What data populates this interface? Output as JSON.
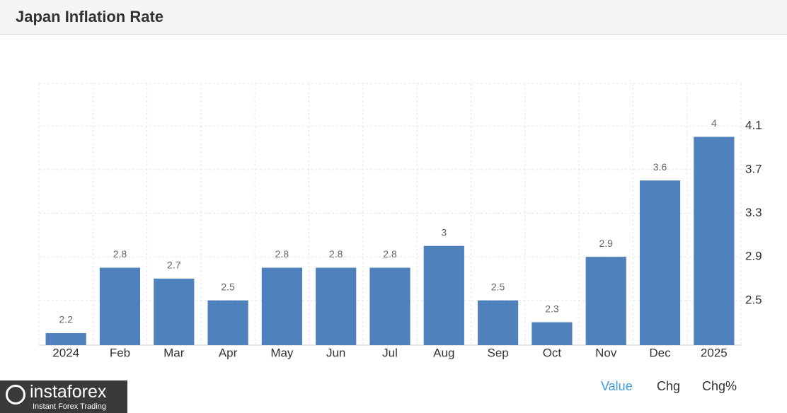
{
  "chart_data": {
    "type": "bar",
    "title": "Japan Inflation Rate",
    "categories": [
      "2024",
      "Feb",
      "Mar",
      "Apr",
      "May",
      "Jun",
      "Jul",
      "Aug",
      "Sep",
      "Oct",
      "Nov",
      "Dec",
      "2025"
    ],
    "values": [
      2.2,
      2.8,
      2.7,
      2.5,
      2.8,
      2.8,
      2.8,
      3,
      2.5,
      2.3,
      2.9,
      3.6,
      4
    ],
    "color": "#4f81bd",
    "ylim": [
      2.09,
      4.49
    ],
    "yticks": [
      2.5,
      2.9,
      3.3,
      3.7,
      4.1
    ],
    "grid": true,
    "tabs": [
      "Value",
      "Chg",
      "Chg%"
    ],
    "watermark": {
      "brand": "instaforex",
      "tagline": "Instant Forex Trading"
    }
  }
}
